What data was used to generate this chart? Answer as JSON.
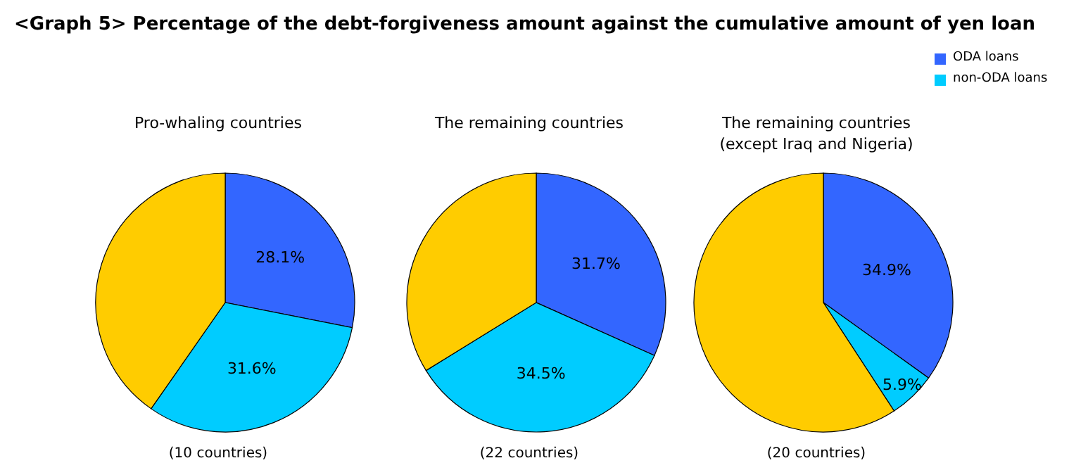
{
  "chart_data": [
    {
      "type": "pie",
      "title": "<Graph 5> Percentage of the debt-forgiveness amount against the cumulative amount of yen loan",
      "subtitle": "Pro-whaling countries",
      "categories": [
        null,
        null,
        null
      ],
      "values": [
        28.1,
        31.6,
        40.3
      ],
      "colors": [
        "#3366ff",
        "#00ccff",
        "#ffcc00"
      ],
      "value_labels": [
        "28.1%",
        "31.6%",
        null
      ],
      "annotations": [
        "(10 countries)"
      ],
      "legend": false
    },
    {
      "type": "pie",
      "subtitle": "The remaining countries",
      "categories": [
        null,
        null,
        null
      ],
      "values": [
        31.7,
        34.5,
        33.8
      ],
      "colors": [
        "#3366ff",
        "#00ccff",
        "#ffcc00"
      ],
      "value_labels": [
        "31.7%",
        "34.5%",
        null
      ],
      "annotations": [
        "(22 countries)"
      ],
      "legend": false
    },
    {
      "type": "pie",
      "subtitle": "The remaining countries\n(except Iraq and Nigeria)",
      "categories": [
        "ODA loans",
        "non-ODA loans",
        null
      ],
      "values": [
        34.9,
        5.9,
        59.2
      ],
      "colors": [
        "#3366ff",
        "#00ccff",
        "#ffcc00"
      ],
      "value_labels": [
        "34.9%",
        "5.9%",
        null
      ],
      "annotations": [
        "(20 countries)"
      ],
      "legend": "top right"
    }
  ]
}
